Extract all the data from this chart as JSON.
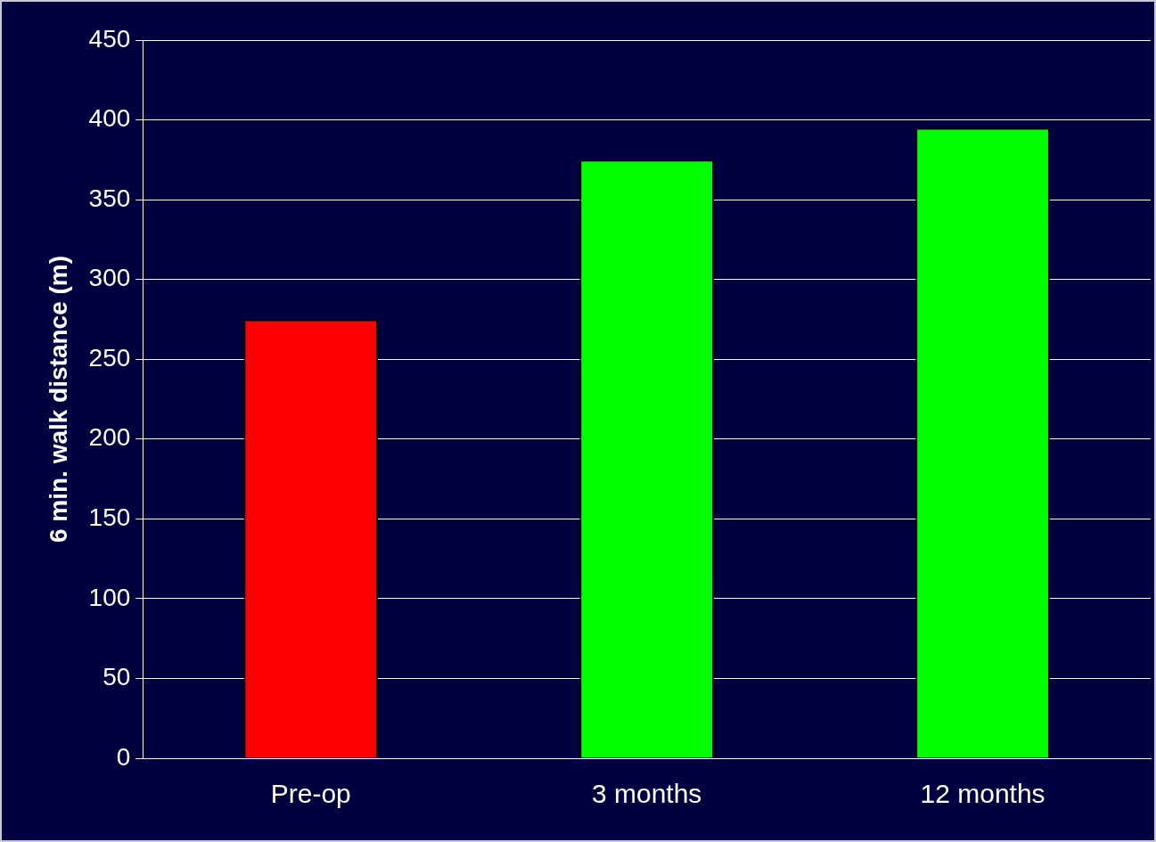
{
  "chart_data": {
    "type": "bar",
    "ylabel": "6 min. walk distance (m)",
    "categories": [
      "Pre-op",
      "3 months",
      "12 months"
    ],
    "values": [
      275,
      375,
      395
    ],
    "colors": [
      "#ff0000",
      "#00ff00",
      "#00ff00"
    ],
    "ylim": [
      0,
      450
    ],
    "yticks": [
      0,
      50,
      100,
      150,
      200,
      250,
      300,
      350,
      400,
      450
    ],
    "grid": "y",
    "legend": false
  }
}
